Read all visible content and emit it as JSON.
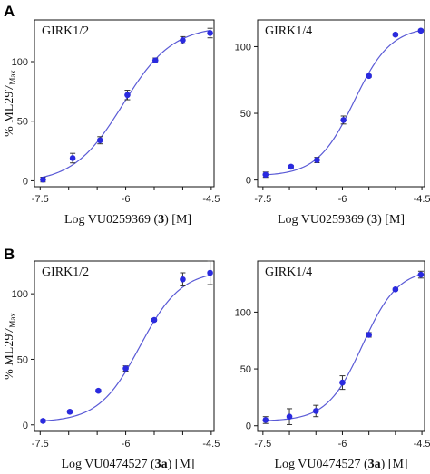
{
  "figure": {
    "ylabel_main": "% ML297",
    "ylabel_sub": "Max"
  },
  "panels": [
    {
      "letter": "A",
      "xlabel_prefix": "Log VU0259369 (",
      "xlabel_compound": "3",
      "xlabel_suffix": ") [M]"
    },
    {
      "letter": "B",
      "xlabel_prefix": "Log VU0474527 (",
      "xlabel_compound": "3a",
      "xlabel_suffix": ") [M]"
    }
  ],
  "chart_data": [
    {
      "type": "scatter",
      "panel": "A",
      "title": "GIRK1/2",
      "xlabel": "Log VU0259369 (3) [M]",
      "ylabel": "% ML297Max",
      "xlim": [
        -7.6,
        -4.45
      ],
      "ylim": [
        -5,
        135
      ],
      "xticks": [
        -7.5,
        -7,
        -6.5,
        -6,
        -5.5,
        -5,
        -4.5
      ],
      "xtick_labels": [
        "-7.5",
        "",
        "",
        "-6",
        "",
        "",
        "-4.5"
      ],
      "yticks": [
        0,
        50,
        100
      ],
      "grid": false,
      "curve": {
        "bottom": -2,
        "top": 130,
        "logEC50": -6.05,
        "hill": 1.0
      },
      "x": [
        -7.45,
        -6.93,
        -6.45,
        -5.97,
        -5.48,
        -5.0,
        -4.52
      ],
      "y": [
        1,
        19,
        34,
        72,
        101,
        118,
        124
      ],
      "err": [
        2,
        4,
        3,
        4,
        2,
        3,
        4
      ]
    },
    {
      "type": "scatter",
      "panel": "A",
      "title": "GIRK1/4",
      "xlabel": "Log VU0259369 (3) [M]",
      "ylabel": "",
      "xlim": [
        -7.6,
        -4.45
      ],
      "ylim": [
        -5,
        120
      ],
      "xticks": [
        -7.5,
        -7,
        -6.5,
        -6,
        -5.5,
        -5,
        -4.5
      ],
      "xtick_labels": [
        "-7.5",
        "",
        "",
        "-6",
        "",
        "",
        "-4.5"
      ],
      "yticks": [
        0,
        50,
        100
      ],
      "grid": false,
      "curve": {
        "bottom": 3,
        "top": 115,
        "logEC50": -5.78,
        "hill": 1.25
      },
      "x": [
        -7.45,
        -6.97,
        -6.48,
        -5.98,
        -5.5,
        -5.0,
        -4.52
      ],
      "y": [
        4,
        10,
        15,
        45,
        78,
        109,
        112
      ],
      "err": [
        2,
        1,
        2,
        3,
        1,
        1,
        1
      ]
    },
    {
      "type": "scatter",
      "panel": "B",
      "title": "GIRK1/2",
      "xlabel": "Log VU0474527 (3a) [M]",
      "ylabel": "% ML297Max",
      "xlim": [
        -7.6,
        -4.45
      ],
      "ylim": [
        -5,
        125
      ],
      "xticks": [
        -7.5,
        -7,
        -6.5,
        -6,
        -5.5,
        -5,
        -4.5
      ],
      "xtick_labels": [
        "-7.5",
        "",
        "",
        "-6",
        "",
        "",
        "-4.5"
      ],
      "yticks": [
        0,
        50,
        100
      ],
      "grid": false,
      "curve": {
        "bottom": 2,
        "top": 118,
        "logEC50": -5.75,
        "hill": 1.2
      },
      "x": [
        -7.45,
        -6.98,
        -6.48,
        -6.0,
        -5.5,
        -5.0,
        -4.52
      ],
      "y": [
        3,
        10,
        26,
        43,
        80,
        111,
        116
      ],
      "err": [
        1,
        1,
        1,
        2,
        1,
        5,
        9
      ]
    },
    {
      "type": "scatter",
      "panel": "B",
      "title": "GIRK1/4",
      "xlabel": "Log VU0474527 (3a) [M]",
      "ylabel": "",
      "xlim": [
        -7.6,
        -4.45
      ],
      "ylim": [
        -5,
        145
      ],
      "xticks": [
        -7.5,
        -7,
        -6.5,
        -6,
        -5.5,
        -5,
        -4.5
      ],
      "xtick_labels": [
        "-7.5",
        "",
        "",
        "-6",
        "",
        "",
        "-4.5"
      ],
      "yticks": [
        0,
        50,
        100
      ],
      "grid": false,
      "curve": {
        "bottom": 4,
        "top": 138,
        "logEC50": -5.62,
        "hill": 1.3
      },
      "x": [
        -7.45,
        -7.0,
        -6.5,
        -6.0,
        -5.5,
        -5.0,
        -4.52
      ],
      "y": [
        5,
        8,
        13,
        38,
        80,
        120,
        133
      ],
      "err": [
        3,
        7,
        5,
        6,
        2,
        1,
        3
      ]
    }
  ]
}
